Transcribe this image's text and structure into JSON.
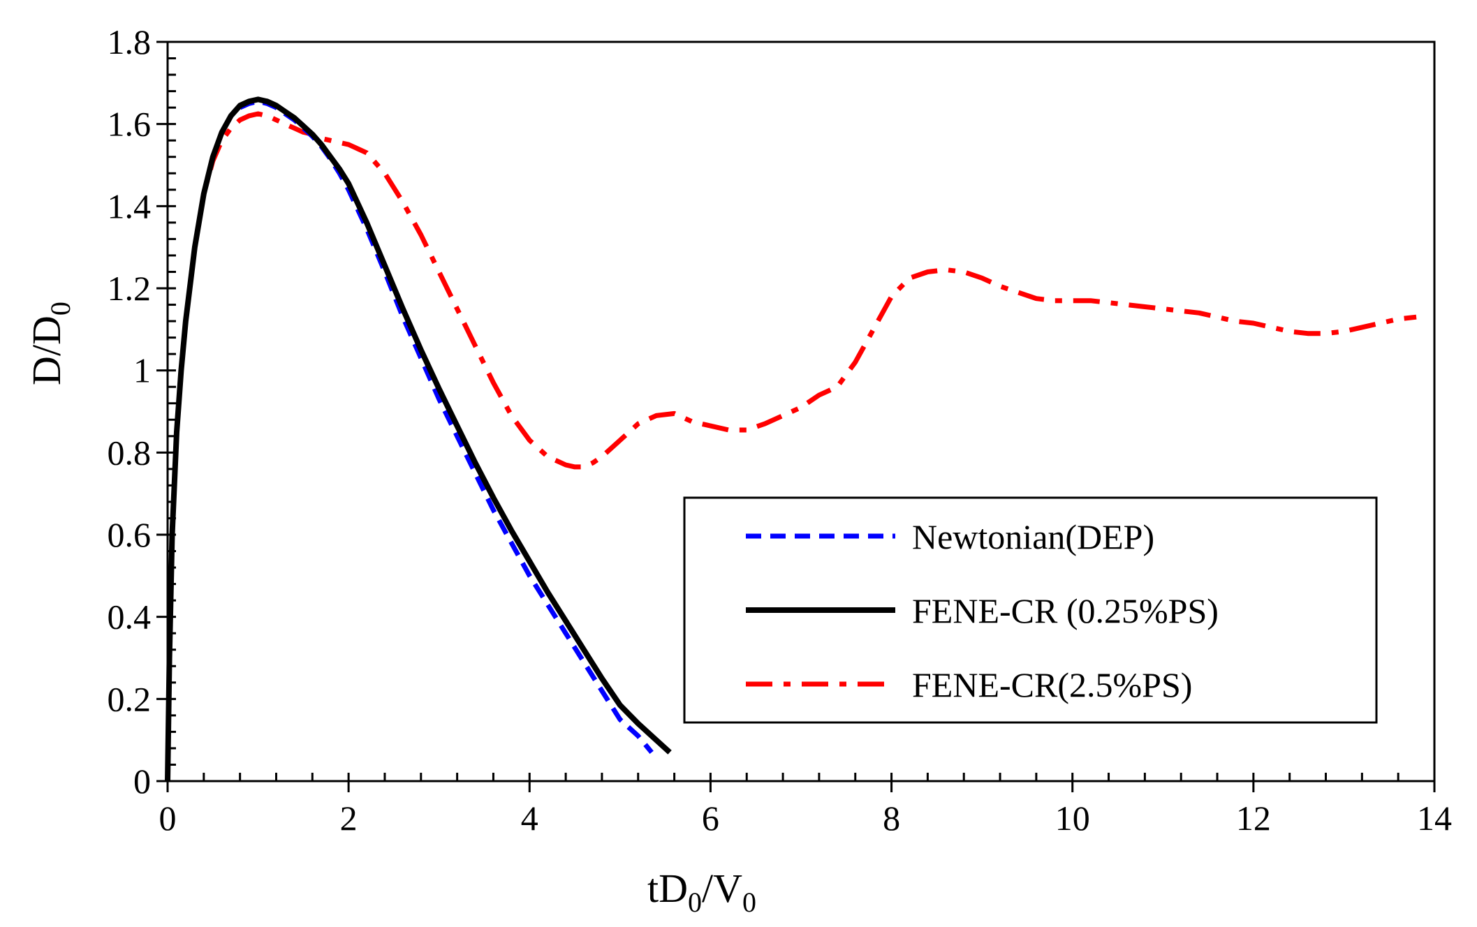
{
  "chart_data": {
    "type": "line",
    "title": "",
    "xlabel": {
      "main": "tD",
      "sub1": "0",
      "mid": "/V",
      "sub2": "0"
    },
    "ylabel": {
      "main": "D/D",
      "sub": "0"
    },
    "xlim": [
      0,
      14
    ],
    "ylim": [
      0,
      1.8
    ],
    "xticks": [
      0,
      2,
      4,
      6,
      8,
      10,
      12,
      14
    ],
    "xtick_labels": [
      "0",
      "2",
      "4",
      "6",
      "8",
      "10",
      "12",
      "14"
    ],
    "yticks": [
      0,
      0.2,
      0.4,
      0.6,
      0.8,
      1.0,
      1.2,
      1.4,
      1.6,
      1.8
    ],
    "ytick_labels": [
      "0",
      "0.2",
      "0.4",
      "0.6",
      "0.8",
      "1",
      "1.2",
      "1.4",
      "1.6",
      "1.8"
    ],
    "x_minor_step": 0.4,
    "y_minor_step": 0.04,
    "grid": false,
    "legend_position": "lower-right",
    "series": [
      {
        "name": "Newtonian(DEP)",
        "color": "#0000FF",
        "style": "dashed",
        "x": [
          0,
          0.02,
          0.05,
          0.1,
          0.15,
          0.2,
          0.3,
          0.4,
          0.5,
          0.6,
          0.7,
          0.8,
          0.9,
          1.0,
          1.1,
          1.2,
          1.3,
          1.4,
          1.5,
          1.6,
          1.7,
          1.8,
          1.9,
          2.0,
          2.2,
          2.4,
          2.6,
          2.8,
          3.0,
          3.2,
          3.4,
          3.6,
          3.8,
          4.0,
          4.2,
          4.4,
          4.6,
          4.8,
          5.0,
          5.2,
          5.35
        ],
        "y": [
          0,
          0.3,
          0.6,
          0.85,
          1.0,
          1.12,
          1.3,
          1.43,
          1.52,
          1.58,
          1.62,
          1.64,
          1.65,
          1.655,
          1.65,
          1.64,
          1.625,
          1.61,
          1.59,
          1.57,
          1.545,
          1.515,
          1.48,
          1.44,
          1.345,
          1.24,
          1.13,
          1.03,
          0.93,
          0.84,
          0.75,
          0.66,
          0.58,
          0.5,
          0.43,
          0.36,
          0.29,
          0.22,
          0.15,
          0.11,
          0.07
        ]
      },
      {
        "name": "FENE-CR (0.25%PS)",
        "color": "#000000",
        "style": "solid",
        "x": [
          0,
          0.02,
          0.05,
          0.1,
          0.15,
          0.2,
          0.3,
          0.4,
          0.5,
          0.6,
          0.7,
          0.8,
          0.9,
          1.0,
          1.1,
          1.2,
          1.3,
          1.4,
          1.5,
          1.6,
          1.7,
          1.8,
          1.9,
          2.0,
          2.2,
          2.4,
          2.6,
          2.8,
          3.0,
          3.2,
          3.4,
          3.6,
          3.8,
          4.0,
          4.2,
          4.4,
          4.6,
          4.8,
          5.0,
          5.2,
          5.4,
          5.55
        ],
        "y": [
          0,
          0.3,
          0.6,
          0.85,
          1.0,
          1.12,
          1.3,
          1.43,
          1.52,
          1.58,
          1.62,
          1.645,
          1.655,
          1.66,
          1.655,
          1.645,
          1.63,
          1.615,
          1.595,
          1.575,
          1.55,
          1.52,
          1.49,
          1.455,
          1.36,
          1.255,
          1.15,
          1.05,
          0.955,
          0.865,
          0.775,
          0.69,
          0.61,
          0.535,
          0.46,
          0.39,
          0.32,
          0.25,
          0.185,
          0.14,
          0.1,
          0.07
        ]
      },
      {
        "name": "FENE-CR(2.5%PS)",
        "color": "#FF0000",
        "style": "dash-dot",
        "x": [
          0,
          0.02,
          0.05,
          0.1,
          0.15,
          0.2,
          0.3,
          0.4,
          0.5,
          0.6,
          0.7,
          0.8,
          0.9,
          1.0,
          1.1,
          1.2,
          1.3,
          1.4,
          1.5,
          1.6,
          1.7,
          1.8,
          2.0,
          2.2,
          2.4,
          2.6,
          2.8,
          3.0,
          3.2,
          3.4,
          3.6,
          3.8,
          4.0,
          4.2,
          4.4,
          4.5,
          4.6,
          4.7,
          4.8,
          5.0,
          5.2,
          5.4,
          5.6,
          5.8,
          6.0,
          6.2,
          6.4,
          6.6,
          6.8,
          7.0,
          7.2,
          7.4,
          7.6,
          7.8,
          8.0,
          8.2,
          8.4,
          8.6,
          8.8,
          9.0,
          9.2,
          9.4,
          9.6,
          9.8,
          10.0,
          10.2,
          10.4,
          10.6,
          10.8,
          11.0,
          11.2,
          11.4,
          11.6,
          11.8,
          12.0,
          12.2,
          12.4,
          12.6,
          12.8,
          13.0,
          13.2,
          13.4,
          13.6,
          13.8
        ],
        "y": [
          0,
          0.3,
          0.6,
          0.85,
          1.0,
          1.12,
          1.3,
          1.43,
          1.51,
          1.56,
          1.59,
          1.61,
          1.62,
          1.625,
          1.62,
          1.61,
          1.6,
          1.59,
          1.58,
          1.575,
          1.565,
          1.56,
          1.55,
          1.53,
          1.48,
          1.41,
          1.33,
          1.24,
          1.15,
          1.06,
          0.97,
          0.89,
          0.83,
          0.79,
          0.77,
          0.765,
          0.765,
          0.775,
          0.79,
          0.83,
          0.87,
          0.89,
          0.895,
          0.875,
          0.865,
          0.855,
          0.855,
          0.87,
          0.89,
          0.91,
          0.94,
          0.96,
          1.02,
          1.1,
          1.18,
          1.225,
          1.24,
          1.245,
          1.24,
          1.225,
          1.205,
          1.19,
          1.175,
          1.17,
          1.17,
          1.17,
          1.165,
          1.16,
          1.155,
          1.15,
          1.145,
          1.14,
          1.13,
          1.12,
          1.115,
          1.105,
          1.095,
          1.09,
          1.09,
          1.095,
          1.105,
          1.115,
          1.125,
          1.13
        ]
      }
    ]
  }
}
